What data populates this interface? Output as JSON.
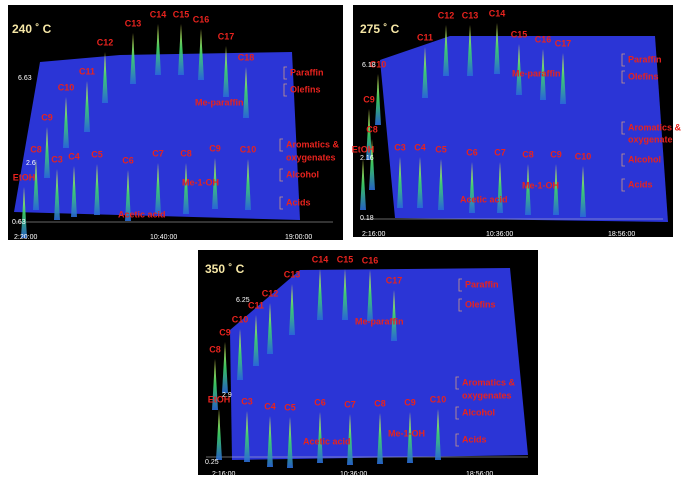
{
  "panels": [
    {
      "title": "240 ˚ C",
      "peak_labels": [
        "C13",
        "C14",
        "C15",
        "C16",
        "C12",
        "C17",
        "C18",
        "C11",
        "C10",
        "C9",
        "C8",
        "EtOH",
        "C3",
        "C4",
        "C5",
        "C6",
        "C7",
        "C8",
        "C9",
        "C10"
      ],
      "group_labels": [
        "Paraffin",
        "Olefins",
        "Me-paraffin",
        "Aromatics &",
        "oxygenates",
        "Alcohol",
        "Me-1-OH",
        "Acids",
        "Acetic acid"
      ],
      "y_labels": [
        "6.63",
        "2.6",
        "0.63"
      ],
      "x_labels": [
        "2:20:00",
        "10:40:00",
        "19:00:00"
      ]
    },
    {
      "title": "275 ˚ C",
      "peak_labels": [
        "C11",
        "C12",
        "C13",
        "C14",
        "C15",
        "C16",
        "C17",
        "C10",
        "C9",
        "C8",
        "EtOH",
        "C3",
        "C4",
        "C5",
        "C6",
        "C7",
        "C8",
        "C9",
        "C10"
      ],
      "group_labels": [
        "Paraffin",
        "Olefins",
        "Me-paraffin",
        "Aromatics &",
        "oxygenate",
        "Alcohol",
        "Me-1-OH",
        "Acids",
        "Acetic acid"
      ],
      "y_labels": [
        "6.18",
        "2.16",
        "0.18"
      ],
      "x_labels": [
        "2:16:00",
        "10:36:00",
        "18:56:00"
      ]
    },
    {
      "title": "350 ˚ C",
      "peak_labels": [
        "C13",
        "C14",
        "C15",
        "C16",
        "C17",
        "C12",
        "C11",
        "C10",
        "C9",
        "C8",
        "EtOH",
        "C3",
        "C4",
        "C5",
        "C6",
        "C7",
        "C8",
        "C9",
        "C10"
      ],
      "group_labels": [
        "Paraffin",
        "Olefins",
        "Me-paraffin",
        "Aromatics &",
        "oxygenates",
        "Alcohol",
        "Me-1-OH",
        "Acids",
        "Acetic acid"
      ],
      "y_labels": [
        "6.25",
        "2.9",
        "0.25"
      ],
      "x_labels": [
        "2:16:00",
        "10:36:00",
        "18:56:00"
      ]
    }
  ]
}
